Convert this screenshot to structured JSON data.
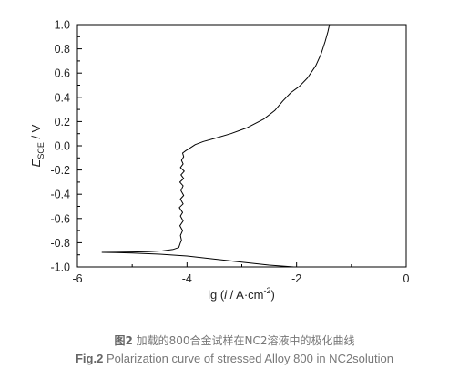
{
  "chart_data": {
    "type": "line",
    "title": "",
    "xlabel": "lg (i / A·cm⁻²)",
    "ylabel": "E_SCE / V",
    "xlabel_parts": {
      "pre": "lg (",
      "var": "i",
      "mid": " / A·cm",
      "sup": "-2",
      "post": ")"
    },
    "ylabel_parts": {
      "main": "E",
      "sub": "SCE",
      "post": " / V"
    },
    "xlim": [
      -6,
      0
    ],
    "ylim": [
      -1.0,
      1.0
    ],
    "x_ticks": [
      -6,
      -4,
      -2,
      0
    ],
    "x_tick_labels": [
      "-6",
      "-4",
      "-2",
      "0"
    ],
    "y_ticks": [
      -1.0,
      -0.8,
      -0.6,
      -0.4,
      -0.2,
      0.0,
      0.2,
      0.4,
      0.6,
      0.8,
      1.0
    ],
    "y_tick_labels": [
      "-1.0",
      "-0.8",
      "-0.6",
      "-0.4",
      "-0.2",
      "0.0",
      "0.2",
      "0.4",
      "0.6",
      "0.8",
      "1.0"
    ],
    "grid": false,
    "series": [
      {
        "color": "#000000",
        "points": [
          [
            -2.05,
            -1.0
          ],
          [
            -2.5,
            -0.985
          ],
          [
            -3.0,
            -0.96
          ],
          [
            -3.5,
            -0.935
          ],
          [
            -4.0,
            -0.91
          ],
          [
            -4.5,
            -0.895
          ],
          [
            -5.0,
            -0.885
          ],
          [
            -5.3,
            -0.882
          ],
          [
            -5.55,
            -0.88
          ],
          [
            -5.3,
            -0.879
          ],
          [
            -5.0,
            -0.877
          ],
          [
            -4.7,
            -0.874
          ],
          [
            -4.45,
            -0.868
          ],
          [
            -4.25,
            -0.855
          ],
          [
            -4.15,
            -0.84
          ],
          [
            -4.12,
            -0.8
          ],
          [
            -4.1,
            -0.78
          ],
          [
            -4.12,
            -0.74
          ],
          [
            -4.08,
            -0.7
          ],
          [
            -4.13,
            -0.66
          ],
          [
            -4.07,
            -0.62
          ],
          [
            -4.12,
            -0.58
          ],
          [
            -4.08,
            -0.55
          ],
          [
            -4.14,
            -0.51
          ],
          [
            -4.07,
            -0.48
          ],
          [
            -4.12,
            -0.44
          ],
          [
            -4.06,
            -0.41
          ],
          [
            -4.11,
            -0.37
          ],
          [
            -4.07,
            -0.33
          ],
          [
            -4.13,
            -0.3
          ],
          [
            -4.06,
            -0.27
          ],
          [
            -4.11,
            -0.24
          ],
          [
            -4.05,
            -0.21
          ],
          [
            -4.12,
            -0.18
          ],
          [
            -4.07,
            -0.15
          ],
          [
            -4.1,
            -0.12
          ],
          [
            -4.06,
            -0.09
          ],
          [
            -4.08,
            -0.06
          ],
          [
            -4.02,
            -0.04
          ],
          [
            -3.95,
            -0.02
          ],
          [
            -3.85,
            0.01
          ],
          [
            -3.7,
            0.035
          ],
          [
            -3.5,
            0.06
          ],
          [
            -3.2,
            0.1
          ],
          [
            -2.9,
            0.15
          ],
          [
            -2.6,
            0.22
          ],
          [
            -2.4,
            0.29
          ],
          [
            -2.25,
            0.37
          ],
          [
            -2.1,
            0.44
          ],
          [
            -1.95,
            0.49
          ],
          [
            -1.8,
            0.56
          ],
          [
            -1.65,
            0.66
          ],
          [
            -1.55,
            0.76
          ],
          [
            -1.48,
            0.86
          ],
          [
            -1.43,
            0.94
          ],
          [
            -1.4,
            1.0
          ]
        ]
      }
    ]
  },
  "caption": {
    "zh_label": "图2",
    "zh_text": " 加载的800合金试样在NC2溶液中的极化曲线",
    "en_label": "Fig.2",
    "en_text": " Polarization curve of stressed Alloy 800 in NC2solution"
  }
}
